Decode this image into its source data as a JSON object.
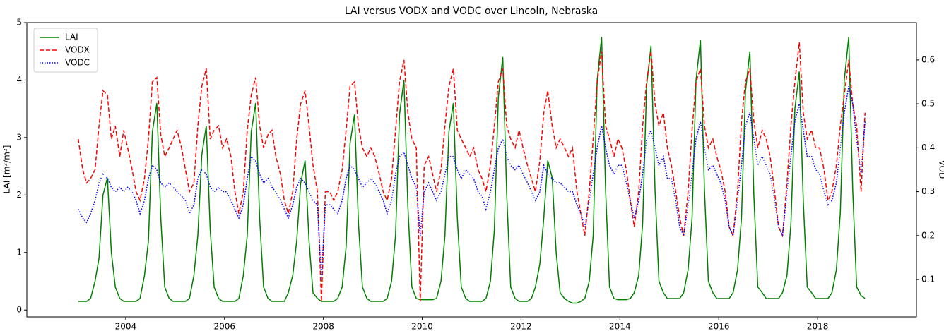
{
  "chart_data": {
    "type": "line",
    "title": "LAI versus VODX and VODC over Lincoln, Nebraska",
    "ylabel": "LAI [m²/m²]",
    "y2label": "VOD",
    "xlim": [
      2002,
      2020
    ],
    "xticks": [
      2004,
      2006,
      2008,
      2010,
      2012,
      2014,
      2016,
      2018
    ],
    "ylim": [
      -0.12,
      5
    ],
    "yticks": [
      0,
      1,
      2,
      3,
      4,
      5
    ],
    "y2lim": [
      0.015,
      0.685
    ],
    "y2ticks": [
      0.1,
      0.2,
      0.3,
      0.4,
      0.5,
      0.6
    ],
    "legend": "upper-left",
    "x": [
      2003.04,
      2003.13,
      2003.21,
      2003.29,
      2003.38,
      2003.46,
      2003.54,
      2003.63,
      2003.71,
      2003.79,
      2003.88,
      2003.96,
      2004.04,
      2004.13,
      2004.21,
      2004.29,
      2004.38,
      2004.46,
      2004.54,
      2004.63,
      2004.71,
      2004.79,
      2004.88,
      2004.96,
      2005.04,
      2005.13,
      2005.21,
      2005.29,
      2005.38,
      2005.46,
      2005.54,
      2005.63,
      2005.71,
      2005.79,
      2005.88,
      2005.96,
      2006.04,
      2006.13,
      2006.21,
      2006.29,
      2006.38,
      2006.46,
      2006.54,
      2006.63,
      2006.71,
      2006.79,
      2006.88,
      2006.96,
      2007.04,
      2007.13,
      2007.21,
      2007.29,
      2007.38,
      2007.46,
      2007.54,
      2007.63,
      2007.71,
      2007.79,
      2007.88,
      2007.96,
      2008.04,
      2008.13,
      2008.21,
      2008.29,
      2008.38,
      2008.46,
      2008.54,
      2008.63,
      2008.71,
      2008.79,
      2008.88,
      2008.96,
      2009.04,
      2009.13,
      2009.21,
      2009.29,
      2009.38,
      2009.46,
      2009.54,
      2009.63,
      2009.71,
      2009.79,
      2009.88,
      2009.96,
      2010.04,
      2010.13,
      2010.21,
      2010.29,
      2010.38,
      2010.46,
      2010.54,
      2010.63,
      2010.71,
      2010.79,
      2010.88,
      2010.96,
      2011.04,
      2011.13,
      2011.21,
      2011.29,
      2011.38,
      2011.46,
      2011.54,
      2011.63,
      2011.71,
      2011.79,
      2011.88,
      2011.96,
      2012.04,
      2012.13,
      2012.21,
      2012.29,
      2012.38,
      2012.46,
      2012.54,
      2012.63,
      2012.71,
      2012.79,
      2012.88,
      2012.96,
      2013.04,
      2013.13,
      2013.21,
      2013.29,
      2013.38,
      2013.46,
      2013.54,
      2013.63,
      2013.71,
      2013.79,
      2013.88,
      2013.96,
      2014.04,
      2014.13,
      2014.21,
      2014.29,
      2014.38,
      2014.46,
      2014.54,
      2014.63,
      2014.71,
      2014.79,
      2014.88,
      2014.96,
      2015.04,
      2015.13,
      2015.21,
      2015.29,
      2015.38,
      2015.46,
      2015.54,
      2015.63,
      2015.71,
      2015.79,
      2015.88,
      2015.96,
      2016.04,
      2016.13,
      2016.21,
      2016.29,
      2016.38,
      2016.46,
      2016.54,
      2016.63,
      2016.71,
      2016.79,
      2016.88,
      2016.96,
      2017.04,
      2017.13,
      2017.21,
      2017.29,
      2017.38,
      2017.46,
      2017.54,
      2017.63,
      2017.71,
      2017.79,
      2017.88,
      2017.96,
      2018.04,
      2018.13,
      2018.21,
      2018.29,
      2018.38,
      2018.46,
      2018.54,
      2018.63,
      2018.71,
      2018.79,
      2018.88,
      2018.96
    ],
    "series": [
      {
        "name": "LAI",
        "color": "#008000",
        "style": "solid",
        "axis": "y",
        "values": [
          0.15,
          0.15,
          0.15,
          0.2,
          0.5,
          0.9,
          2.0,
          2.3,
          1.0,
          0.4,
          0.2,
          0.15,
          0.15,
          0.15,
          0.15,
          0.2,
          0.6,
          1.2,
          3.1,
          3.6,
          1.6,
          0.4,
          0.2,
          0.15,
          0.15,
          0.15,
          0.15,
          0.2,
          0.6,
          1.3,
          2.7,
          3.2,
          1.4,
          0.4,
          0.2,
          0.15,
          0.15,
          0.15,
          0.15,
          0.2,
          0.6,
          1.3,
          3.1,
          3.6,
          1.6,
          0.4,
          0.2,
          0.15,
          0.15,
          0.15,
          0.15,
          0.3,
          0.6,
          1.2,
          2.2,
          2.6,
          1.2,
          0.3,
          0.2,
          0.15,
          0.15,
          0.15,
          0.15,
          0.2,
          0.4,
          1.1,
          2.9,
          3.4,
          1.5,
          0.4,
          0.2,
          0.15,
          0.15,
          0.15,
          0.15,
          0.2,
          0.5,
          1.3,
          3.4,
          4.0,
          1.8,
          0.4,
          0.2,
          0.18,
          0.18,
          0.18,
          0.18,
          0.2,
          0.5,
          1.3,
          3.1,
          3.6,
          1.6,
          0.4,
          0.2,
          0.15,
          0.15,
          0.15,
          0.15,
          0.2,
          0.5,
          1.4,
          3.7,
          4.4,
          2.0,
          0.4,
          0.2,
          0.15,
          0.15,
          0.15,
          0.2,
          0.4,
          0.8,
          1.6,
          2.6,
          2.3,
          1.0,
          0.3,
          0.2,
          0.15,
          0.12,
          0.12,
          0.15,
          0.2,
          0.5,
          1.3,
          4.0,
          4.75,
          2.1,
          0.4,
          0.2,
          0.18,
          0.18,
          0.18,
          0.2,
          0.3,
          0.6,
          1.5,
          3.9,
          4.6,
          2.1,
          0.5,
          0.3,
          0.2,
          0.2,
          0.2,
          0.2,
          0.3,
          0.7,
          1.6,
          4.0,
          4.7,
          2.1,
          0.5,
          0.3,
          0.2,
          0.2,
          0.2,
          0.2,
          0.3,
          0.7,
          1.6,
          3.8,
          4.5,
          2.0,
          0.4,
          0.3,
          0.2,
          0.2,
          0.2,
          0.2,
          0.3,
          0.6,
          1.5,
          3.5,
          4.15,
          1.9,
          0.4,
          0.3,
          0.2,
          0.2,
          0.2,
          0.2,
          0.3,
          0.7,
          1.7,
          4.0,
          4.75,
          2.1,
          0.4,
          0.25,
          0.2
        ]
      },
      {
        "name": "VODX",
        "color": "#ff0000",
        "style": "dashed",
        "axis": "y2",
        "values": [
          0.42,
          0.35,
          0.32,
          0.33,
          0.35,
          0.45,
          0.53,
          0.52,
          0.42,
          0.45,
          0.38,
          0.44,
          0.4,
          0.35,
          0.3,
          0.28,
          0.33,
          0.42,
          0.55,
          0.56,
          0.43,
          0.38,
          0.4,
          0.42,
          0.44,
          0.4,
          0.35,
          0.3,
          0.32,
          0.45,
          0.54,
          0.58,
          0.42,
          0.44,
          0.45,
          0.4,
          0.42,
          0.38,
          0.3,
          0.25,
          0.3,
          0.44,
          0.52,
          0.56,
          0.45,
          0.4,
          0.43,
          0.44,
          0.38,
          0.34,
          0.28,
          0.25,
          0.3,
          0.42,
          0.5,
          0.53,
          0.45,
          0.36,
          0.3,
          0.05,
          0.3,
          0.3,
          0.28,
          0.3,
          0.35,
          0.44,
          0.54,
          0.55,
          0.45,
          0.4,
          0.38,
          0.4,
          0.38,
          0.34,
          0.3,
          0.28,
          0.33,
          0.44,
          0.55,
          0.6,
          0.48,
          0.42,
          0.4,
          0.05,
          0.36,
          0.38,
          0.34,
          0.3,
          0.35,
          0.45,
          0.54,
          0.58,
          0.44,
          0.42,
          0.4,
          0.38,
          0.4,
          0.35,
          0.33,
          0.3,
          0.36,
          0.45,
          0.55,
          0.58,
          0.45,
          0.42,
          0.4,
          0.44,
          0.4,
          0.36,
          0.33,
          0.3,
          0.37,
          0.48,
          0.53,
          0.45,
          0.4,
          0.42,
          0.4,
          0.38,
          0.4,
          0.3,
          0.25,
          0.2,
          0.3,
          0.42,
          0.55,
          0.62,
          0.45,
          0.42,
          0.38,
          0.42,
          0.4,
          0.35,
          0.28,
          0.22,
          0.3,
          0.45,
          0.55,
          0.62,
          0.5,
          0.45,
          0.48,
          0.4,
          0.36,
          0.3,
          0.24,
          0.2,
          0.3,
          0.44,
          0.55,
          0.58,
          0.45,
          0.4,
          0.42,
          0.38,
          0.35,
          0.3,
          0.22,
          0.2,
          0.3,
          0.46,
          0.55,
          0.58,
          0.46,
          0.4,
          0.44,
          0.42,
          0.38,
          0.3,
          0.22,
          0.2,
          0.32,
          0.45,
          0.55,
          0.64,
          0.48,
          0.42,
          0.44,
          0.4,
          0.4,
          0.35,
          0.28,
          0.3,
          0.36,
          0.45,
          0.52,
          0.6,
          0.5,
          0.45,
          0.3,
          0.48
        ]
      },
      {
        "name": "VODC",
        "color": "#0000ff",
        "style": "dotted",
        "axis": "y2",
        "values": [
          0.26,
          0.24,
          0.23,
          0.25,
          0.28,
          0.32,
          0.34,
          0.33,
          0.31,
          0.3,
          0.31,
          0.3,
          0.31,
          0.3,
          0.28,
          0.25,
          0.28,
          0.33,
          0.36,
          0.35,
          0.32,
          0.31,
          0.32,
          0.31,
          0.3,
          0.29,
          0.28,
          0.25,
          0.27,
          0.33,
          0.35,
          0.34,
          0.31,
          0.3,
          0.31,
          0.3,
          0.3,
          0.28,
          0.26,
          0.24,
          0.27,
          0.33,
          0.38,
          0.37,
          0.34,
          0.32,
          0.33,
          0.31,
          0.3,
          0.28,
          0.26,
          0.24,
          0.27,
          0.31,
          0.33,
          0.32,
          0.3,
          0.28,
          0.27,
          0.1,
          0.27,
          0.27,
          0.26,
          0.25,
          0.28,
          0.33,
          0.36,
          0.35,
          0.33,
          0.31,
          0.32,
          0.33,
          0.32,
          0.3,
          0.28,
          0.25,
          0.28,
          0.34,
          0.38,
          0.39,
          0.36,
          0.33,
          0.31,
          0.2,
          0.3,
          0.32,
          0.3,
          0.28,
          0.3,
          0.34,
          0.38,
          0.38,
          0.35,
          0.33,
          0.35,
          0.34,
          0.33,
          0.3,
          0.29,
          0.26,
          0.3,
          0.35,
          0.4,
          0.42,
          0.38,
          0.36,
          0.35,
          0.36,
          0.34,
          0.32,
          0.3,
          0.28,
          0.3,
          0.36,
          0.34,
          0.33,
          0.32,
          0.32,
          0.31,
          0.3,
          0.3,
          0.27,
          0.25,
          0.22,
          0.28,
          0.34,
          0.4,
          0.45,
          0.4,
          0.36,
          0.34,
          0.36,
          0.36,
          0.32,
          0.28,
          0.24,
          0.28,
          0.34,
          0.42,
          0.44,
          0.4,
          0.36,
          0.38,
          0.33,
          0.33,
          0.28,
          0.22,
          0.2,
          0.27,
          0.34,
          0.42,
          0.46,
          0.4,
          0.35,
          0.36,
          0.34,
          0.32,
          0.28,
          0.22,
          0.2,
          0.28,
          0.36,
          0.45,
          0.48,
          0.42,
          0.36,
          0.38,
          0.36,
          0.34,
          0.28,
          0.22,
          0.2,
          0.3,
          0.38,
          0.46,
          0.5,
          0.44,
          0.38,
          0.38,
          0.35,
          0.34,
          0.3,
          0.27,
          0.28,
          0.32,
          0.4,
          0.48,
          0.54,
          0.5,
          0.42,
          0.34,
          0.46
        ]
      }
    ]
  }
}
